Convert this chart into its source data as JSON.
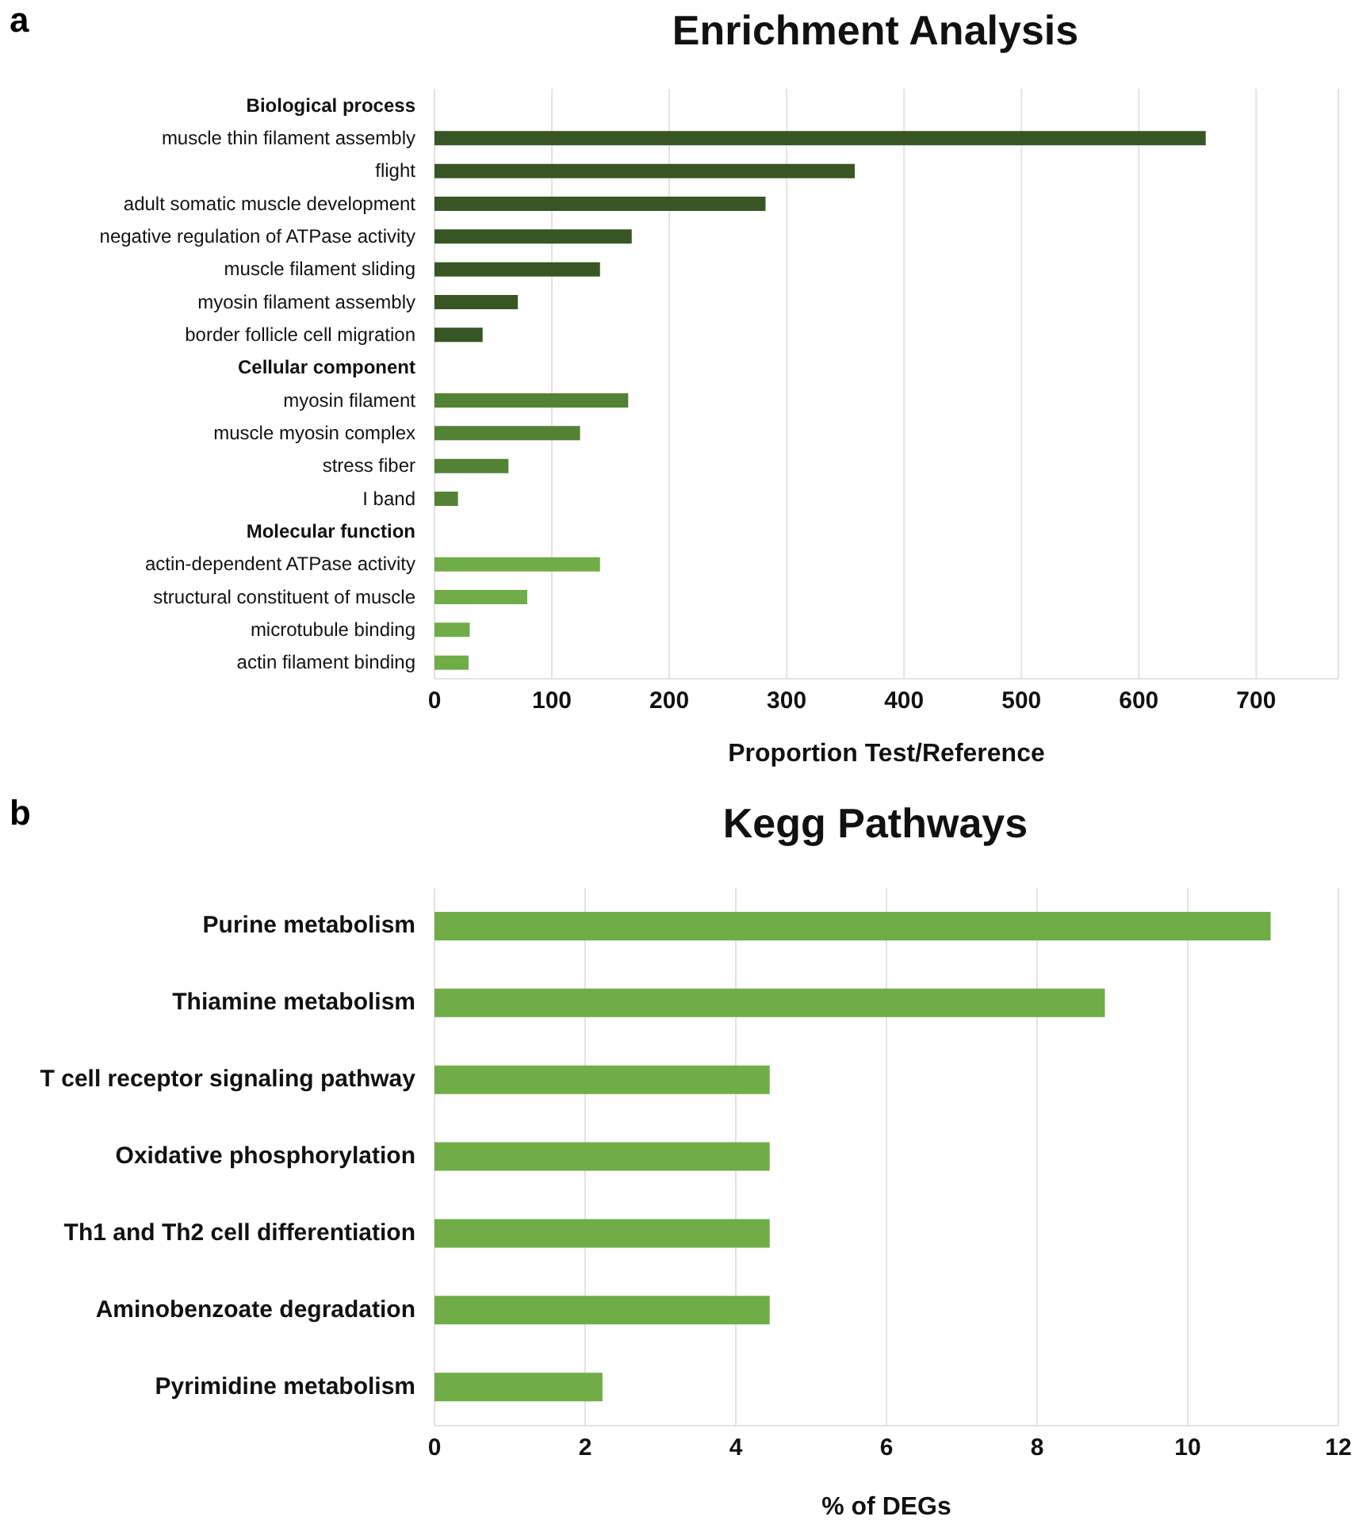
{
  "chart_data": [
    {
      "type": "bar",
      "orientation": "horizontal",
      "title": "Enrichment Analysis",
      "xlabel": "Proportion Test/Reference",
      "annotations": [
        "a"
      ],
      "categories": [
        "Biological process",
        "muscle thin filament assembly",
        "flight",
        "adult somatic muscle development",
        "negative regulation of ATPase activity",
        "muscle filament sliding",
        "myosin filament assembly",
        "border follicle cell migration",
        "Cellular component",
        "myosin filament",
        "muscle myosin complex",
        "stress fiber",
        "I band",
        "Molecular function",
        "actin-dependent ATPase activity",
        "structural constituent of muscle",
        "microtubule binding",
        "actin filament binding"
      ],
      "values": [
        null,
        657,
        358,
        282,
        168,
        141,
        71,
        41,
        null,
        165,
        124,
        63,
        20,
        null,
        141,
        79,
        30,
        29
      ],
      "colors": [
        null,
        "#375623",
        "#375623",
        "#375623",
        "#375623",
        "#375623",
        "#375623",
        "#375623",
        null,
        "#548235",
        "#548235",
        "#548235",
        "#548235",
        null,
        "#70ad47",
        "#70ad47",
        "#70ad47",
        "#70ad47"
      ],
      "xlim": [
        0,
        770
      ],
      "xticks": [
        0,
        100,
        200,
        300,
        400,
        500,
        600,
        700
      ],
      "grid": "x"
    },
    {
      "type": "bar",
      "orientation": "horizontal",
      "title": "Kegg Pathways",
      "xlabel": "% of DEGs",
      "annotations": [
        "b"
      ],
      "categories": [
        "Purine metabolism",
        "Thiamine metabolism",
        "T cell receptor signaling pathway",
        "Oxidative phosphorylation",
        "Th1 and Th2 cell differentiation",
        "Aminobenzoate degradation",
        "Pyrimidine metabolism"
      ],
      "values": [
        11.1,
        8.9,
        4.45,
        4.45,
        4.45,
        4.45,
        2.23
      ],
      "color": "#70ad47",
      "xlim": [
        0,
        12
      ],
      "xticks": [
        0,
        2,
        4,
        6,
        8,
        10,
        12
      ],
      "grid": "x"
    }
  ]
}
